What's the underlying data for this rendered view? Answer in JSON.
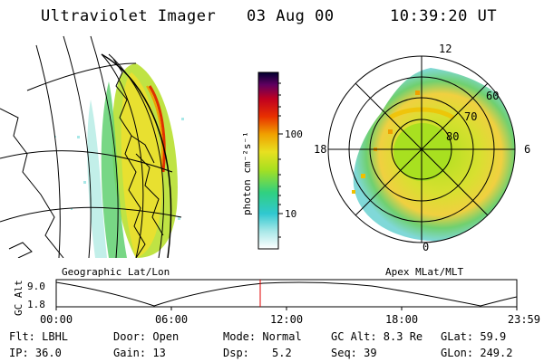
{
  "header": {
    "instrument": "Ultraviolet Imager",
    "date": "03 Aug 00",
    "time": "10:39:20 UT"
  },
  "left_panel": {
    "caption": "Geographic Lat/Lon"
  },
  "colorbar": {
    "unit_label": "photon cm⁻²s⁻¹",
    "tick_labels": [
      "100",
      "10"
    ],
    "scale": "log",
    "colors": [
      "#ffffff",
      "#a8e8e8",
      "#30c8d0",
      "#30d080",
      "#a8e020",
      "#e8e020",
      "#f0a000",
      "#e83000",
      "#c00020",
      "#600060",
      "#000030"
    ]
  },
  "polar_plot": {
    "caption": "Apex MLat/MLT",
    "mlt_labels": {
      "top": "12",
      "left": "18",
      "right": "6",
      "bottom": "0"
    },
    "mlat_labels": [
      "60",
      "70",
      "80"
    ]
  },
  "altitude_plot": {
    "ylabel": "GC Alt",
    "yticks": [
      "9.0",
      "1.8"
    ],
    "xticks": [
      "00:00",
      "06:00",
      "12:00",
      "18:00",
      "23:59"
    ],
    "marker_color": "#e00000"
  },
  "info": {
    "filter": "Flt: LBHL",
    "ip": "IP: 36.0",
    "door": "Door: Open",
    "gain": "Gain: 13",
    "mode": "Mode: Normal",
    "dsp_label": "Dsp:",
    "dsp_value": "5.2",
    "gc_alt": "GC Alt: 8.3 Re",
    "seq": "Seq: 39",
    "glat": "GLat:  59.9",
    "glon": "GLon: 249.2"
  }
}
